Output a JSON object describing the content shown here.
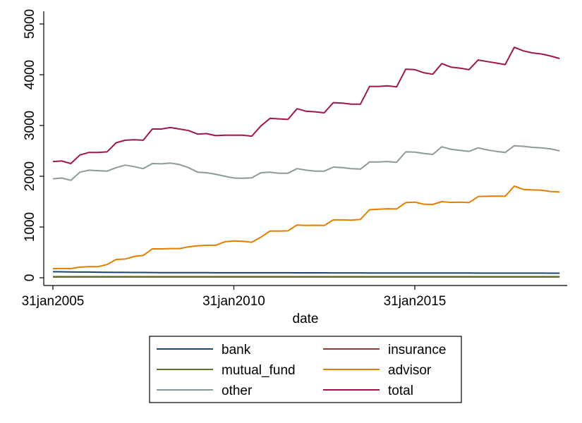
{
  "chart_data": {
    "type": "line",
    "xlabel": "date",
    "ylabel": "",
    "title": "",
    "x_ticks": [
      "31jan2005",
      "31jan2010",
      "31jan2015"
    ],
    "y_ticks": [
      "0",
      "1000",
      "2000",
      "3000",
      "4000",
      "5000"
    ],
    "ylim": [
      0,
      5000
    ],
    "xlim": [
      "2004-10",
      "2019-05"
    ],
    "grid": false,
    "legend_position": "bottom",
    "x": [
      "2005-01-31",
      "2005-04-30",
      "2005-07-31",
      "2005-10-31",
      "2006-01-31",
      "2006-04-30",
      "2006-07-31",
      "2006-10-31",
      "2007-01-31",
      "2007-04-30",
      "2007-07-31",
      "2007-10-31",
      "2008-01-31",
      "2008-04-30",
      "2008-07-31",
      "2008-10-31",
      "2009-01-31",
      "2009-04-30",
      "2009-07-31",
      "2009-10-31",
      "2010-01-31",
      "2010-04-30",
      "2010-07-31",
      "2010-10-31",
      "2011-01-31",
      "2011-04-30",
      "2011-07-31",
      "2011-10-31",
      "2012-01-31",
      "2012-04-30",
      "2012-07-31",
      "2012-10-31",
      "2013-01-31",
      "2013-04-30",
      "2013-07-31",
      "2013-10-31",
      "2014-01-31",
      "2014-04-30",
      "2014-07-31",
      "2014-10-31",
      "2015-01-31",
      "2015-04-30",
      "2015-07-31",
      "2015-10-31",
      "2016-01-31",
      "2016-04-30",
      "2016-07-31",
      "2016-10-31",
      "2017-01-31",
      "2017-04-30",
      "2017-07-31",
      "2017-10-31",
      "2018-01-31",
      "2018-04-30",
      "2018-07-31",
      "2018-10-31",
      "2019-01-31"
    ],
    "series": [
      {
        "name": "bank",
        "color": "#1a476f",
        "values": [
          120,
          118,
          115,
          113,
          112,
          110,
          108,
          106,
          105,
          104,
          104,
          103,
          102,
          101,
          101,
          100,
          100,
          100,
          99,
          99,
          99,
          99,
          99,
          98,
          98,
          98,
          98,
          97,
          97,
          97,
          97,
          96,
          96,
          96,
          96,
          95,
          95,
          95,
          95,
          94,
          94,
          94,
          94,
          93,
          93,
          93,
          93,
          92,
          92,
          92,
          92,
          91,
          91,
          91,
          91,
          90,
          90
        ]
      },
      {
        "name": "insurance",
        "color": "#90353b",
        "values": [
          15,
          15,
          15,
          15,
          15,
          15,
          15,
          15,
          15,
          15,
          15,
          15,
          15,
          15,
          15,
          15,
          15,
          15,
          15,
          15,
          15,
          15,
          15,
          15,
          15,
          15,
          15,
          15,
          15,
          15,
          15,
          15,
          15,
          15,
          15,
          15,
          15,
          15,
          15,
          15,
          15,
          15,
          15,
          15,
          15,
          15,
          15,
          15,
          15,
          15,
          15,
          15,
          15,
          15,
          15,
          15,
          15
        ]
      },
      {
        "name": "mutual_fund",
        "color": "#55752f",
        "values": [
          22,
          22,
          22,
          22,
          22,
          22,
          22,
          22,
          22,
          22,
          22,
          22,
          22,
          22,
          22,
          22,
          22,
          22,
          22,
          22,
          22,
          22,
          22,
          22,
          22,
          22,
          22,
          22,
          22,
          22,
          22,
          22,
          22,
          22,
          22,
          22,
          22,
          22,
          22,
          22,
          22,
          22,
          22,
          22,
          22,
          22,
          22,
          22,
          22,
          22,
          22,
          22,
          22,
          22,
          22,
          22,
          22
        ]
      },
      {
        "name": "advisor",
        "color": "#e37e00",
        "values": [
          180,
          182,
          180,
          210,
          220,
          220,
          260,
          360,
          370,
          420,
          440,
          570,
          570,
          575,
          575,
          610,
          630,
          640,
          640,
          710,
          725,
          720,
          700,
          800,
          920,
          920,
          925,
          1040,
          1030,
          1035,
          1030,
          1140,
          1140,
          1135,
          1150,
          1340,
          1350,
          1360,
          1355,
          1480,
          1490,
          1450,
          1445,
          1500,
          1485,
          1490,
          1480,
          1600,
          1605,
          1610,
          1605,
          1805,
          1740,
          1730,
          1725,
          1700,
          1690
        ]
      },
      {
        "name": "other",
        "color": "#8d9a9d",
        "values": [
          1950,
          1965,
          1920,
          2080,
          2120,
          2110,
          2100,
          2170,
          2220,
          2190,
          2150,
          2250,
          2245,
          2260,
          2230,
          2170,
          2080,
          2070,
          2040,
          2000,
          1965,
          1960,
          1970,
          2070,
          2080,
          2060,
          2060,
          2150,
          2120,
          2100,
          2100,
          2180,
          2170,
          2150,
          2140,
          2280,
          2280,
          2290,
          2275,
          2480,
          2475,
          2450,
          2430,
          2580,
          2530,
          2510,
          2490,
          2560,
          2520,
          2490,
          2470,
          2600,
          2590,
          2570,
          2560,
          2540,
          2500
        ]
      },
      {
        "name": "total",
        "color": "#a0154d",
        "values": [
          2290,
          2300,
          2250,
          2420,
          2470,
          2470,
          2480,
          2660,
          2710,
          2720,
          2710,
          2930,
          2930,
          2960,
          2930,
          2900,
          2830,
          2840,
          2800,
          2810,
          2810,
          2810,
          2790,
          2990,
          3140,
          3130,
          3120,
          3330,
          3280,
          3270,
          3250,
          3450,
          3440,
          3420,
          3420,
          3770,
          3770,
          3780,
          3760,
          4110,
          4100,
          4040,
          4010,
          4220,
          4150,
          4130,
          4100,
          4290,
          4260,
          4230,
          4200,
          4540,
          4470,
          4430,
          4410,
          4370,
          4320
        ]
      }
    ]
  }
}
